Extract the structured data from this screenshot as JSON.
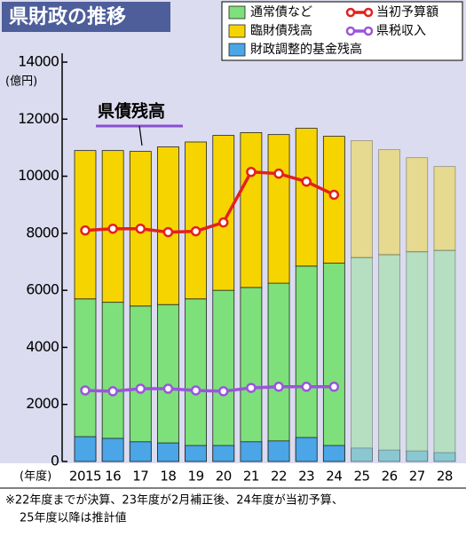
{
  "chart_data": {
    "type": "bar",
    "title": "県財政の推移",
    "y_label": "(億円)",
    "x_label": "(年度)",
    "annotation": "県債残高",
    "notes": [
      "※22年度までが決算、23年度が2月補正後、24年度が当初予算、",
      "25年度以降は推計値"
    ],
    "categories": [
      "2015",
      "16",
      "17",
      "18",
      "19",
      "20",
      "21",
      "22",
      "23",
      "24",
      "25",
      "26",
      "27",
      "28"
    ],
    "ylim": [
      0,
      14000
    ],
    "yticks": [
      0,
      2000,
      4000,
      6000,
      8000,
      10000,
      12000,
      14000
    ],
    "series": [
      {
        "name": "通常債など",
        "type": "bar",
        "stacked": true,
        "color": "#7ee07a",
        "values": [
          5700,
          5580,
          5450,
          5500,
          5700,
          6000,
          6100,
          6250,
          6850,
          6950,
          7150,
          7250,
          7350,
          7400
        ]
      },
      {
        "name": "臨財債残高",
        "type": "bar",
        "stacked": true,
        "color": "#f6d400",
        "values": [
          5200,
          5320,
          5420,
          5530,
          5500,
          5430,
          5430,
          5210,
          4830,
          4450,
          4100,
          3680,
          3300,
          2940
        ]
      },
      {
        "name": "財政調整的基金残高",
        "type": "bar",
        "stacked": false,
        "color": "#4aa6e6",
        "values": [
          870,
          810,
          690,
          650,
          560,
          560,
          690,
          720,
          840,
          560,
          470,
          400,
          370,
          310
        ]
      },
      {
        "name": "当初予算額",
        "type": "line",
        "color": "#e3211c",
        "values": [
          8100,
          8160,
          8160,
          8040,
          8070,
          8380,
          10150,
          10090,
          9810,
          9350,
          null,
          null,
          null,
          null
        ]
      },
      {
        "name": "県税収入",
        "type": "line",
        "color": "#9a55dc",
        "values": [
          2490,
          2460,
          2550,
          2550,
          2490,
          2460,
          2580,
          2620,
          2620,
          2620,
          null,
          null,
          null,
          null
        ]
      }
    ]
  }
}
